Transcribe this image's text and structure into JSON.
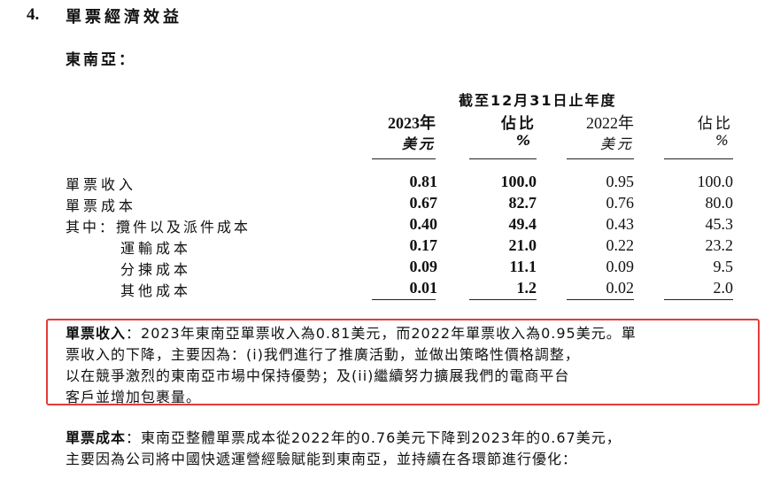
{
  "section": {
    "number": "4.",
    "title": "單票經濟效益"
  },
  "subsection": {
    "title": "東南亞："
  },
  "table": {
    "period_header": "截至12月31日止年度",
    "columns": [
      {
        "year": "2023年",
        "unit": "美元",
        "bold": true
      },
      {
        "year": "佔比",
        "unit": "%",
        "bold": true
      },
      {
        "year": "2022年",
        "unit": "美元",
        "bold": false
      },
      {
        "year": "佔比",
        "unit": "%",
        "bold": false
      }
    ],
    "rows": [
      {
        "label": "單票收入",
        "values": [
          "0.81",
          "100.0",
          "0.95",
          "100.0"
        ]
      },
      {
        "label": "單票成本",
        "values": [
          "0.67",
          "82.7",
          "0.76",
          "80.0"
        ]
      },
      {
        "label": "其中：攬件以及派件成本",
        "values": [
          "0.40",
          "49.4",
          "0.43",
          "45.3"
        ]
      },
      {
        "label": "運輸成本",
        "values": [
          "0.17",
          "21.0",
          "0.22",
          "23.2"
        ]
      },
      {
        "label": "分揀成本",
        "values": [
          "0.09",
          "11.1",
          "0.09",
          "9.5"
        ]
      },
      {
        "label": "其他成本",
        "values": [
          "0.01",
          "1.2",
          "0.02",
          "2.0"
        ]
      }
    ]
  },
  "paragraph1": {
    "lead": "單票收入",
    "lines": [
      "：2023年東南亞單票收入為0.81美元，而2022年單票收入為0.95美元。單",
      "票收入的下降，主要因為：(i)我們進行了推廣活動，並做出策略性價格調整，",
      "以在競爭激烈的東南亞市場中保持優勢；及(ii)繼續努力擴展我們的電商平台",
      "客戶並增加包裹量。"
    ],
    "highlight_color": "#e23b3b"
  },
  "paragraph2": {
    "lead": "單票成本",
    "lines": [
      "：東南亞整體單票成本從2022年的0.76美元下降到2023年的0.67美元，",
      "主要因為公司將中國快遞運營經驗賦能到東南亞，並持續在各環節進行優化："
    ]
  }
}
